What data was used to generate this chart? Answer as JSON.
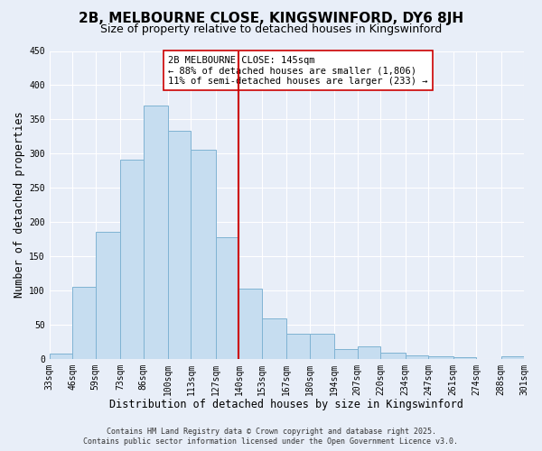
{
  "title": "2B, MELBOURNE CLOSE, KINGSWINFORD, DY6 8JH",
  "subtitle": "Size of property relative to detached houses in Kingswinford",
  "xlabel": "Distribution of detached houses by size in Kingswinford",
  "ylabel": "Number of detached properties",
  "bin_labels": [
    "33sqm",
    "46sqm",
    "59sqm",
    "73sqm",
    "86sqm",
    "100sqm",
    "113sqm",
    "127sqm",
    "140sqm",
    "153sqm",
    "167sqm",
    "180sqm",
    "194sqm",
    "207sqm",
    "220sqm",
    "234sqm",
    "247sqm",
    "261sqm",
    "274sqm",
    "288sqm",
    "301sqm"
  ],
  "bin_edges": [
    33,
    46,
    59,
    73,
    86,
    100,
    113,
    127,
    140,
    153,
    167,
    180,
    194,
    207,
    220,
    234,
    247,
    261,
    274,
    288,
    301
  ],
  "bar_heights": [
    8,
    105,
    185,
    291,
    370,
    333,
    306,
    178,
    102,
    59,
    36,
    36,
    14,
    18,
    9,
    5,
    3,
    2,
    0,
    3
  ],
  "bar_color": "#c6ddf0",
  "bar_edgecolor": "#7fb3d3",
  "reference_line_x": 140,
  "reference_line_color": "#cc0000",
  "annotation_text": "2B MELBOURNE CLOSE: 145sqm\n← 88% of detached houses are smaller (1,806)\n11% of semi-detached houses are larger (233) →",
  "annotation_box_edgecolor": "#cc0000",
  "ylim": [
    0,
    450
  ],
  "yticks": [
    0,
    50,
    100,
    150,
    200,
    250,
    300,
    350,
    400,
    450
  ],
  "footer_line1": "Contains HM Land Registry data © Crown copyright and database right 2025.",
  "footer_line2": "Contains public sector information licensed under the Open Government Licence v3.0.",
  "bg_color": "#e8eef8",
  "grid_color": "#ffffff",
  "title_fontsize": 11,
  "subtitle_fontsize": 9,
  "axis_label_fontsize": 8.5,
  "tick_fontsize": 7,
  "annotation_fontsize": 7.5,
  "footer_fontsize": 6
}
